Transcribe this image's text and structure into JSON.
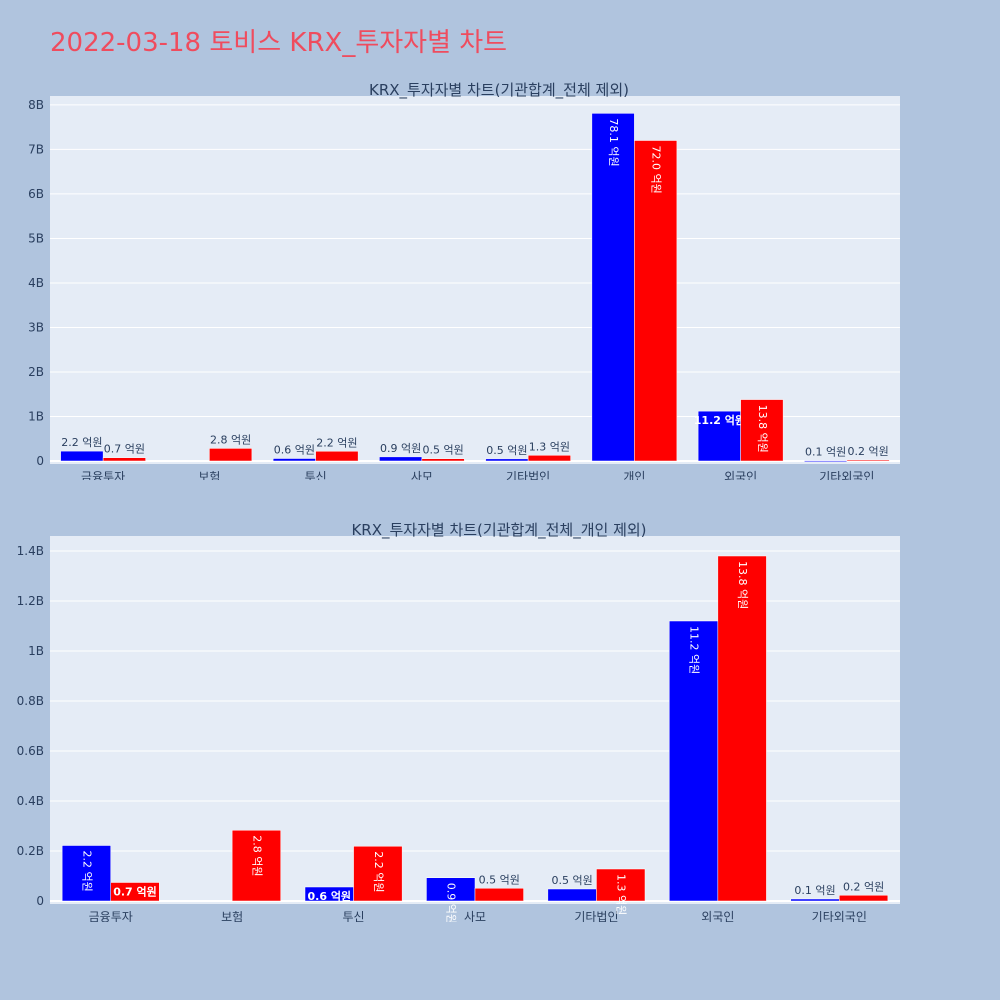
{
  "page_title": "2022-03-18 토비스 KRX_투자자별 차트",
  "colors": {
    "buy": "#0000ff",
    "sell": "#ff0000",
    "plot_bg": "#e5ecf6",
    "page_bg": "#b0c4de",
    "title": "#ef4c5e"
  },
  "chart_data": [
    {
      "type": "bar",
      "title": "KRX_투자자별 차트(기관합계_전체 제외)",
      "categories": [
        "금융투자",
        "보험",
        "투신",
        "사모",
        "기타법인",
        "개인",
        "외국인",
        "기타외국인"
      ],
      "series": [
        {
          "color": "#0000ff",
          "values": [
            222000000,
            0,
            56000000,
            93000000,
            48000000,
            7810000000,
            1120000000,
            8000000
          ],
          "labels": [
            "2.2 억원",
            "",
            "0.6 억원",
            "0.9 억원",
            "0.5 억원",
            "78.1 억원",
            "11.2 억원",
            "0.1 억원"
          ]
        },
        {
          "color": "#ff0000",
          "values": [
            74000000,
            283000000,
            219000000,
            51000000,
            128000000,
            7200000000,
            1380000000,
            23000000
          ],
          "labels": [
            "0.7 억원",
            "2.8 억원",
            "2.2 억원",
            "0.5 억원",
            "1.3 억원",
            "72.0 억원",
            "13.8 억원",
            "0.2 억원"
          ]
        }
      ],
      "ylim": [
        0,
        8200000000
      ],
      "yticks": [
        0,
        1000000000,
        2000000000,
        3000000000,
        4000000000,
        5000000000,
        6000000000,
        7000000000,
        8000000000
      ],
      "ytick_labels": [
        "0",
        "1B",
        "2B",
        "3B",
        "4B",
        "5B",
        "6B",
        "7B",
        "8B"
      ],
      "grid": true
    },
    {
      "type": "bar",
      "title": "KRX_투자자별 차트(기관합계_전체_개인 제외)",
      "categories": [
        "금융투자",
        "보험",
        "투신",
        "사모",
        "기타법인",
        "외국인",
        "기타외국인"
      ],
      "series": [
        {
          "color": "#0000ff",
          "values": [
            222000000,
            0,
            56000000,
            93000000,
            48000000,
            1120000000,
            8000000
          ],
          "labels": [
            "2.2 억원",
            "",
            "0.6 억원",
            "0.9 억원",
            "0.5 억원",
            "11.2 억원",
            "0.1 억원"
          ]
        },
        {
          "color": "#ff0000",
          "values": [
            74000000,
            283000000,
            219000000,
            51000000,
            128000000,
            1380000000,
            23000000
          ],
          "labels": [
            "0.7 억원",
            "2.8 억원",
            "2.2 억원",
            "0.5 억원",
            "1.3 억원",
            "13.8 억원",
            "0.2 억원"
          ]
        }
      ],
      "ylim": [
        0,
        1460000000
      ],
      "yticks": [
        0,
        200000000,
        400000000,
        600000000,
        800000000,
        1000000000,
        1200000000,
        1400000000
      ],
      "ytick_labels": [
        "0",
        "0.2B",
        "0.4B",
        "0.6B",
        "0.8B",
        "1B",
        "1.2B",
        "1.4B"
      ],
      "grid": true
    }
  ]
}
